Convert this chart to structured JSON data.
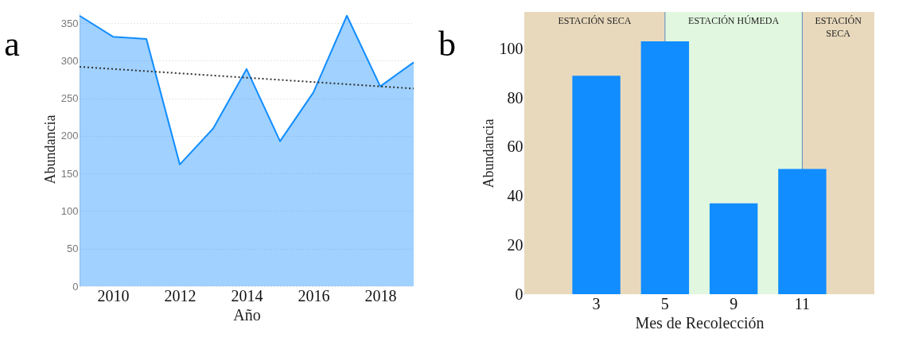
{
  "chart_data": [
    {
      "type": "area",
      "title": "a",
      "xlabel": "Año",
      "ylabel": "Abundancia",
      "x": [
        2009,
        2010,
        2011,
        2012,
        2013,
        2014,
        2015,
        2016,
        2017,
        2018,
        2019
      ],
      "series": [
        {
          "color": "#118dff",
          "values": [
            360,
            332,
            329,
            162,
            210,
            289,
            193,
            258,
            360,
            266,
            298
          ]
        },
        {
          "type": "line",
          "x": [
            2009,
            2019
          ],
          "values": [
            292,
            263
          ],
          "color": "#333333",
          "line_style": "dotted"
        }
      ],
      "xlim": [
        2009,
        2019
      ],
      "xticks": [
        2010,
        2012,
        2014,
        2016,
        2018
      ],
      "ylim": [
        0,
        365
      ],
      "yticks": [
        0,
        50,
        100,
        150,
        200,
        250,
        300,
        350
      ],
      "grid": "y"
    },
    {
      "type": "bar",
      "title": "b",
      "xlabel": "Mes de Recolección",
      "ylabel": "Abundancia",
      "categories": [
        "3",
        "5",
        "9",
        "11"
      ],
      "values": [
        89,
        103,
        37,
        51
      ],
      "color": "#118dff",
      "ylim": [
        0,
        115
      ],
      "yticks": [
        0,
        20,
        40,
        60,
        80,
        100
      ],
      "ref_lines": [
        {
          "axis": "x",
          "value": "5",
          "color": "#5b88b8"
        },
        {
          "axis": "x",
          "value": "11",
          "color": "#5b88b8"
        }
      ],
      "bands": [
        {
          "axis": "x",
          "from": "3",
          "to": "5",
          "label": "ESTACIÓN SECA",
          "color": "#e8d9bc"
        },
        {
          "axis": "x",
          "from": "5",
          "to": "11",
          "label": "ESTACIÓN HÚMEDA",
          "color": "#e1f7df"
        },
        {
          "axis": "x",
          "from": "11",
          "to": "11",
          "label": "ESTACIÓN SECA",
          "color": "#e8d9bc"
        }
      ]
    }
  ]
}
